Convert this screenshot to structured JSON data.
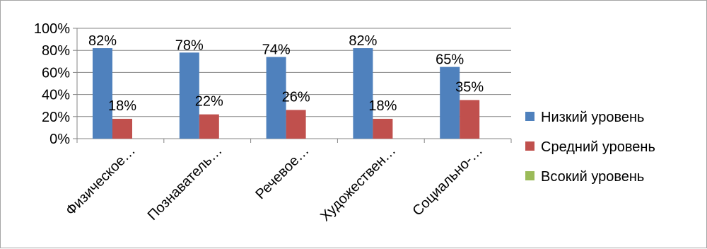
{
  "chart_data": {
    "type": "bar",
    "categories": [
      "Физическое…",
      "Познаватель…",
      "Речевое…",
      "Художествен…",
      "Социально-…"
    ],
    "series": [
      {
        "name": "Низкий уровень",
        "color": "#4f81bd",
        "values": [
          82,
          78,
          74,
          82,
          65
        ],
        "labels": [
          "82%",
          "78%",
          "74%",
          "82%",
          "65%"
        ]
      },
      {
        "name": "Средний уровень",
        "color": "#c0504d",
        "values": [
          18,
          22,
          26,
          18,
          35
        ],
        "labels": [
          "18%",
          "22%",
          "26%",
          "18%",
          "35%"
        ]
      },
      {
        "name": "Всокий уровень",
        "color": "#9bbb59",
        "values": [
          0,
          0,
          0,
          0,
          0
        ],
        "labels": []
      }
    ],
    "yticks": [
      "0%",
      "20%",
      "40%",
      "60%",
      "80%",
      "100%"
    ],
    "ylim": [
      0,
      100
    ],
    "grid": true,
    "legend": "right",
    "title": "",
    "xlabel": "",
    "ylabel": ""
  }
}
